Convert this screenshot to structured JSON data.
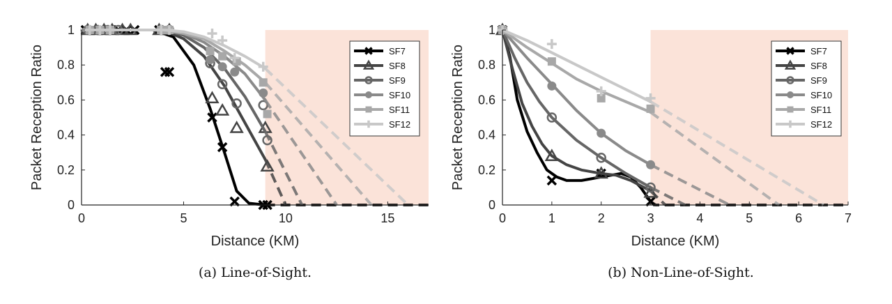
{
  "chart_data": [
    {
      "type": "line",
      "caption": "(a) Line-of-Sight.",
      "xlabel": "Distance (KM)",
      "ylabel": "Packet Reception Ratio",
      "xlim": [
        0,
        17
      ],
      "ylim": [
        0,
        1
      ],
      "xticks": [
        "0",
        "5",
        "10",
        "15"
      ],
      "yticks": [
        "0",
        "0.2",
        "0.4",
        "0.6",
        "0.8",
        "1"
      ],
      "grid": false,
      "legend_position": "top-right",
      "shaded_region": [
        9,
        17
      ],
      "series": [
        {
          "name": "SF7",
          "color": "#000000",
          "marker": "x",
          "points": [
            [
              0.2,
              1
            ],
            [
              0.6,
              1
            ],
            [
              1,
              1
            ],
            [
              1.4,
              1
            ],
            [
              1.8,
              1
            ],
            [
              2.2,
              1
            ],
            [
              2.6,
              1
            ],
            [
              3.8,
              1
            ],
            [
              4.1,
              0.76
            ],
            [
              4.3,
              0.76
            ],
            [
              6.4,
              0.5
            ],
            [
              6.9,
              0.33
            ],
            [
              7.5,
              0.02
            ],
            [
              8.9,
              0
            ],
            [
              9.1,
              0
            ]
          ],
          "fit": [
            [
              0,
              1
            ],
            [
              3.5,
              1
            ],
            [
              4.5,
              0.96
            ],
            [
              5.5,
              0.8
            ],
            [
              6.3,
              0.55
            ],
            [
              7,
              0.3
            ],
            [
              7.6,
              0.08
            ],
            [
              8.2,
              0.01
            ],
            [
              9,
              0
            ]
          ],
          "extrap": [
            [
              9,
              0
            ],
            [
              17,
              0
            ]
          ]
        },
        {
          "name": "SF8",
          "color": "#444444",
          "marker": "triangle",
          "points": [
            [
              0.3,
              1
            ],
            [
              0.7,
              1
            ],
            [
              1.1,
              1
            ],
            [
              1.5,
              1
            ],
            [
              2,
              1
            ],
            [
              2.4,
              1
            ],
            [
              3.8,
              1
            ],
            [
              4.3,
              1
            ],
            [
              6.4,
              0.61
            ],
            [
              6.9,
              0.54
            ],
            [
              7.6,
              0.44
            ],
            [
              9,
              0.44
            ],
            [
              9.1,
              0.22
            ]
          ],
          "fit": [
            [
              0,
              1
            ],
            [
              4,
              1
            ],
            [
              5,
              0.95
            ],
            [
              6,
              0.85
            ],
            [
              7,
              0.68
            ],
            [
              8,
              0.47
            ],
            [
              9,
              0.26
            ]
          ],
          "extrap": [
            [
              9,
              0.26
            ],
            [
              10,
              0
            ]
          ]
        },
        {
          "name": "SF9",
          "color": "#666666",
          "marker": "circle",
          "points": [
            [
              0.3,
              1
            ],
            [
              0.8,
              1
            ],
            [
              1.3,
              1
            ],
            [
              1.8,
              1
            ],
            [
              3.9,
              1
            ],
            [
              4.3,
              1
            ],
            [
              6.3,
              0.81
            ],
            [
              6.9,
              0.69
            ],
            [
              7.6,
              0.58
            ],
            [
              8.9,
              0.57
            ],
            [
              9.1,
              0.37
            ]
          ],
          "fit": [
            [
              0,
              1
            ],
            [
              4,
              1
            ],
            [
              5,
              0.97
            ],
            [
              6,
              0.9
            ],
            [
              7,
              0.78
            ],
            [
              8,
              0.62
            ],
            [
              9,
              0.42
            ]
          ],
          "extrap": [
            [
              9,
              0.42
            ],
            [
              10.8,
              0
            ]
          ]
        },
        {
          "name": "SF10",
          "color": "#8a8a8a",
          "marker": "diamond",
          "points": [
            [
              0.4,
              1
            ],
            [
              0.9,
              1
            ],
            [
              1.4,
              1
            ],
            [
              3.9,
              1
            ],
            [
              4.3,
              1
            ],
            [
              6.3,
              0.83
            ],
            [
              6.9,
              0.79
            ],
            [
              7.5,
              0.76
            ],
            [
              8.9,
              0.64
            ]
          ],
          "fit": [
            [
              0,
              1
            ],
            [
              4,
              1
            ],
            [
              5,
              0.98
            ],
            [
              6,
              0.93
            ],
            [
              7,
              0.85
            ],
            [
              8,
              0.75
            ],
            [
              9,
              0.6
            ]
          ],
          "extrap": [
            [
              9,
              0.6
            ],
            [
              12.5,
              0
            ]
          ]
        },
        {
          "name": "SF11",
          "color": "#a8a8a8",
          "marker": "square",
          "points": [
            [
              0.4,
              1
            ],
            [
              0.9,
              1
            ],
            [
              1.4,
              1
            ],
            [
              3.9,
              1
            ],
            [
              4.3,
              1
            ],
            [
              6.3,
              0.88
            ],
            [
              6.9,
              0.85
            ],
            [
              7.6,
              0.82
            ],
            [
              8.9,
              0.7
            ],
            [
              9.1,
              0.52
            ]
          ],
          "fit": [
            [
              0,
              1
            ],
            [
              4,
              1
            ],
            [
              5,
              0.98
            ],
            [
              6,
              0.95
            ],
            [
              7,
              0.88
            ],
            [
              8,
              0.8
            ],
            [
              9,
              0.7
            ]
          ],
          "extrap": [
            [
              9,
              0.7
            ],
            [
              14.2,
              0
            ]
          ]
        },
        {
          "name": "SF12",
          "color": "#c8c8c8",
          "marker": "plus",
          "points": [
            [
              0.4,
              1
            ],
            [
              0.9,
              1
            ],
            [
              1.4,
              1
            ],
            [
              3.9,
              1
            ],
            [
              4.3,
              1
            ],
            [
              6.4,
              0.98
            ],
            [
              6.9,
              0.94
            ],
            [
              7.5,
              0.84
            ],
            [
              8.9,
              0.79
            ]
          ],
          "fit": [
            [
              0,
              1
            ],
            [
              4,
              1
            ],
            [
              5,
              0.99
            ],
            [
              6,
              0.96
            ],
            [
              7,
              0.91
            ],
            [
              8,
              0.85
            ],
            [
              9,
              0.78
            ]
          ],
          "extrap": [
            [
              9,
              0.78
            ],
            [
              16,
              0
            ]
          ]
        }
      ]
    },
    {
      "type": "line",
      "caption": "(b) Non-Line-of-Sight.",
      "xlabel": "Distance (KM)",
      "ylabel": "Packet Reception Ratio",
      "xlim": [
        0,
        7
      ],
      "ylim": [
        0,
        1
      ],
      "xticks": [
        "0",
        "1",
        "2",
        "3",
        "4",
        "5",
        "6",
        "7"
      ],
      "yticks": [
        "0",
        "0.2",
        "0.4",
        "0.6",
        "0.8",
        "1"
      ],
      "grid": false,
      "legend_position": "top-right",
      "shaded_region": [
        3,
        7
      ],
      "series": [
        {
          "name": "SF7",
          "color": "#000000",
          "marker": "x",
          "points": [
            [
              0,
              1
            ],
            [
              1,
              0.14
            ],
            [
              2,
              0.18
            ],
            [
              3,
              0.02
            ]
          ],
          "fit": [
            [
              0,
              1
            ],
            [
              0.15,
              0.85
            ],
            [
              0.3,
              0.6
            ],
            [
              0.5,
              0.42
            ],
            [
              0.7,
              0.3
            ],
            [
              0.9,
              0.2
            ],
            [
              1.1,
              0.16
            ],
            [
              1.3,
              0.14
            ],
            [
              1.6,
              0.14
            ],
            [
              1.8,
              0.15
            ],
            [
              2,
              0.16
            ],
            [
              2.2,
              0.17
            ],
            [
              2.4,
              0.18
            ],
            [
              2.6,
              0.16
            ],
            [
              2.8,
              0.1
            ],
            [
              3,
              0.02
            ]
          ],
          "extrap": [
            [
              3,
              0.02
            ],
            [
              3.1,
              0
            ],
            [
              7,
              0
            ]
          ]
        },
        {
          "name": "SF8",
          "color": "#444444",
          "marker": "triangle",
          "points": [
            [
              0,
              1
            ],
            [
              1,
              0.28
            ],
            [
              2,
              0.18
            ],
            [
              3,
              0.07
            ]
          ],
          "fit": [
            [
              0,
              1
            ],
            [
              0.2,
              0.78
            ],
            [
              0.4,
              0.58
            ],
            [
              0.6,
              0.45
            ],
            [
              0.8,
              0.35
            ],
            [
              1,
              0.28
            ],
            [
              1.3,
              0.23
            ],
            [
              1.6,
              0.2
            ],
            [
              2,
              0.18
            ],
            [
              2.3,
              0.17
            ],
            [
              2.6,
              0.14
            ],
            [
              3,
              0.08
            ]
          ],
          "extrap": [
            [
              3,
              0.08
            ],
            [
              3.3,
              0
            ]
          ]
        },
        {
          "name": "SF9",
          "color": "#666666",
          "marker": "circle",
          "points": [
            [
              0,
              1
            ],
            [
              1,
              0.5
            ],
            [
              2,
              0.27
            ],
            [
              3,
              0.1
            ]
          ],
          "fit": [
            [
              0,
              1
            ],
            [
              0.25,
              0.84
            ],
            [
              0.5,
              0.7
            ],
            [
              0.75,
              0.59
            ],
            [
              1,
              0.5
            ],
            [
              1.5,
              0.37
            ],
            [
              2,
              0.27
            ],
            [
              2.5,
              0.18
            ],
            [
              3,
              0.1
            ]
          ],
          "extrap": [
            [
              3,
              0.1
            ],
            [
              3.7,
              0
            ]
          ]
        },
        {
          "name": "SF10",
          "color": "#8a8a8a",
          "marker": "diamond",
          "points": [
            [
              0,
              1
            ],
            [
              1,
              0.68
            ],
            [
              2,
              0.41
            ],
            [
              3,
              0.23
            ]
          ],
          "fit": [
            [
              0,
              1
            ],
            [
              0.5,
              0.84
            ],
            [
              1,
              0.69
            ],
            [
              1.5,
              0.54
            ],
            [
              2,
              0.41
            ],
            [
              2.5,
              0.31
            ],
            [
              3,
              0.23
            ]
          ],
          "extrap": [
            [
              3,
              0.23
            ],
            [
              4.6,
              0
            ]
          ]
        },
        {
          "name": "SF11",
          "color": "#a8a8a8",
          "marker": "square",
          "points": [
            [
              0,
              1
            ],
            [
              1,
              0.82
            ],
            [
              2,
              0.61
            ],
            [
              3,
              0.55
            ]
          ],
          "fit": [
            [
              0,
              1
            ],
            [
              0.5,
              0.9
            ],
            [
              1,
              0.81
            ],
            [
              1.5,
              0.72
            ],
            [
              2,
              0.65
            ],
            [
              2.5,
              0.59
            ],
            [
              3,
              0.53
            ]
          ],
          "extrap": [
            [
              3,
              0.53
            ],
            [
              5.6,
              0
            ]
          ]
        },
        {
          "name": "SF12",
          "color": "#c8c8c8",
          "marker": "plus",
          "points": [
            [
              0,
              1
            ],
            [
              1,
              0.92
            ],
            [
              2,
              0.65
            ],
            [
              3,
              0.61
            ]
          ],
          "fit": [
            [
              0,
              1
            ],
            [
              0.5,
              0.94
            ],
            [
              1,
              0.87
            ],
            [
              1.5,
              0.8
            ],
            [
              2,
              0.73
            ],
            [
              2.5,
              0.66
            ],
            [
              3,
              0.59
            ]
          ],
          "extrap": [
            [
              3,
              0.59
            ],
            [
              6.5,
              0
            ]
          ]
        }
      ]
    }
  ],
  "colors": {
    "shaded_region": "#fbe3d9"
  }
}
